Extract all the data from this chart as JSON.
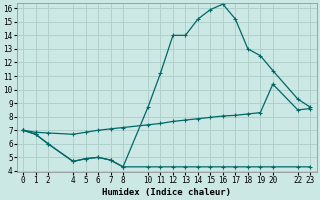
{
  "xlabel": "Humidex (Indice chaleur)",
  "bg_color": "#cce8e4",
  "grid_color": "#b0d0cc",
  "line_color": "#006868",
  "x_ticks": [
    0,
    1,
    2,
    4,
    5,
    6,
    7,
    8,
    10,
    11,
    12,
    13,
    14,
    15,
    16,
    17,
    18,
    19,
    20,
    22,
    23
  ],
  "ylim": [
    4,
    16
  ],
  "xlim": [
    -0.5,
    23.5
  ],
  "y_ticks": [
    4,
    5,
    6,
    7,
    8,
    9,
    10,
    11,
    12,
    13,
    14,
    15,
    16
  ],
  "line_min_x": [
    0,
    1,
    2,
    4,
    5,
    6,
    7,
    8,
    10,
    11,
    12,
    13,
    14,
    15,
    16,
    17,
    18,
    19,
    20,
    22,
    23
  ],
  "line_min_y": [
    7.0,
    6.7,
    6.0,
    4.7,
    4.9,
    5.0,
    4.8,
    4.3,
    4.3,
    4.3,
    4.3,
    4.3,
    4.3,
    4.3,
    4.3,
    4.3,
    4.3,
    4.3,
    4.3,
    4.3,
    4.3
  ],
  "line_max_x": [
    0,
    1,
    2,
    4,
    5,
    6,
    7,
    8,
    10,
    11,
    12,
    13,
    14,
    15,
    16,
    17,
    18,
    19,
    20,
    22,
    23
  ],
  "line_max_y": [
    7.0,
    6.7,
    6.0,
    4.7,
    4.9,
    5.0,
    4.8,
    4.3,
    8.7,
    11.2,
    14.0,
    14.0,
    15.2,
    15.9,
    16.3,
    15.2,
    13.0,
    12.5,
    11.4,
    9.3,
    8.7
  ],
  "line_mean_x": [
    0,
    1,
    2,
    4,
    5,
    6,
    7,
    8,
    10,
    11,
    12,
    13,
    14,
    15,
    16,
    17,
    18,
    19,
    20,
    22,
    23
  ],
  "line_mean_y": [
    7.0,
    6.85,
    6.8,
    6.7,
    6.85,
    7.0,
    7.1,
    7.2,
    7.4,
    7.5,
    7.65,
    7.75,
    7.85,
    7.95,
    8.05,
    8.1,
    8.2,
    8.3,
    10.4,
    8.5,
    8.6
  ],
  "tick_fontsize": 5.5,
  "axis_fontsize": 6.5
}
